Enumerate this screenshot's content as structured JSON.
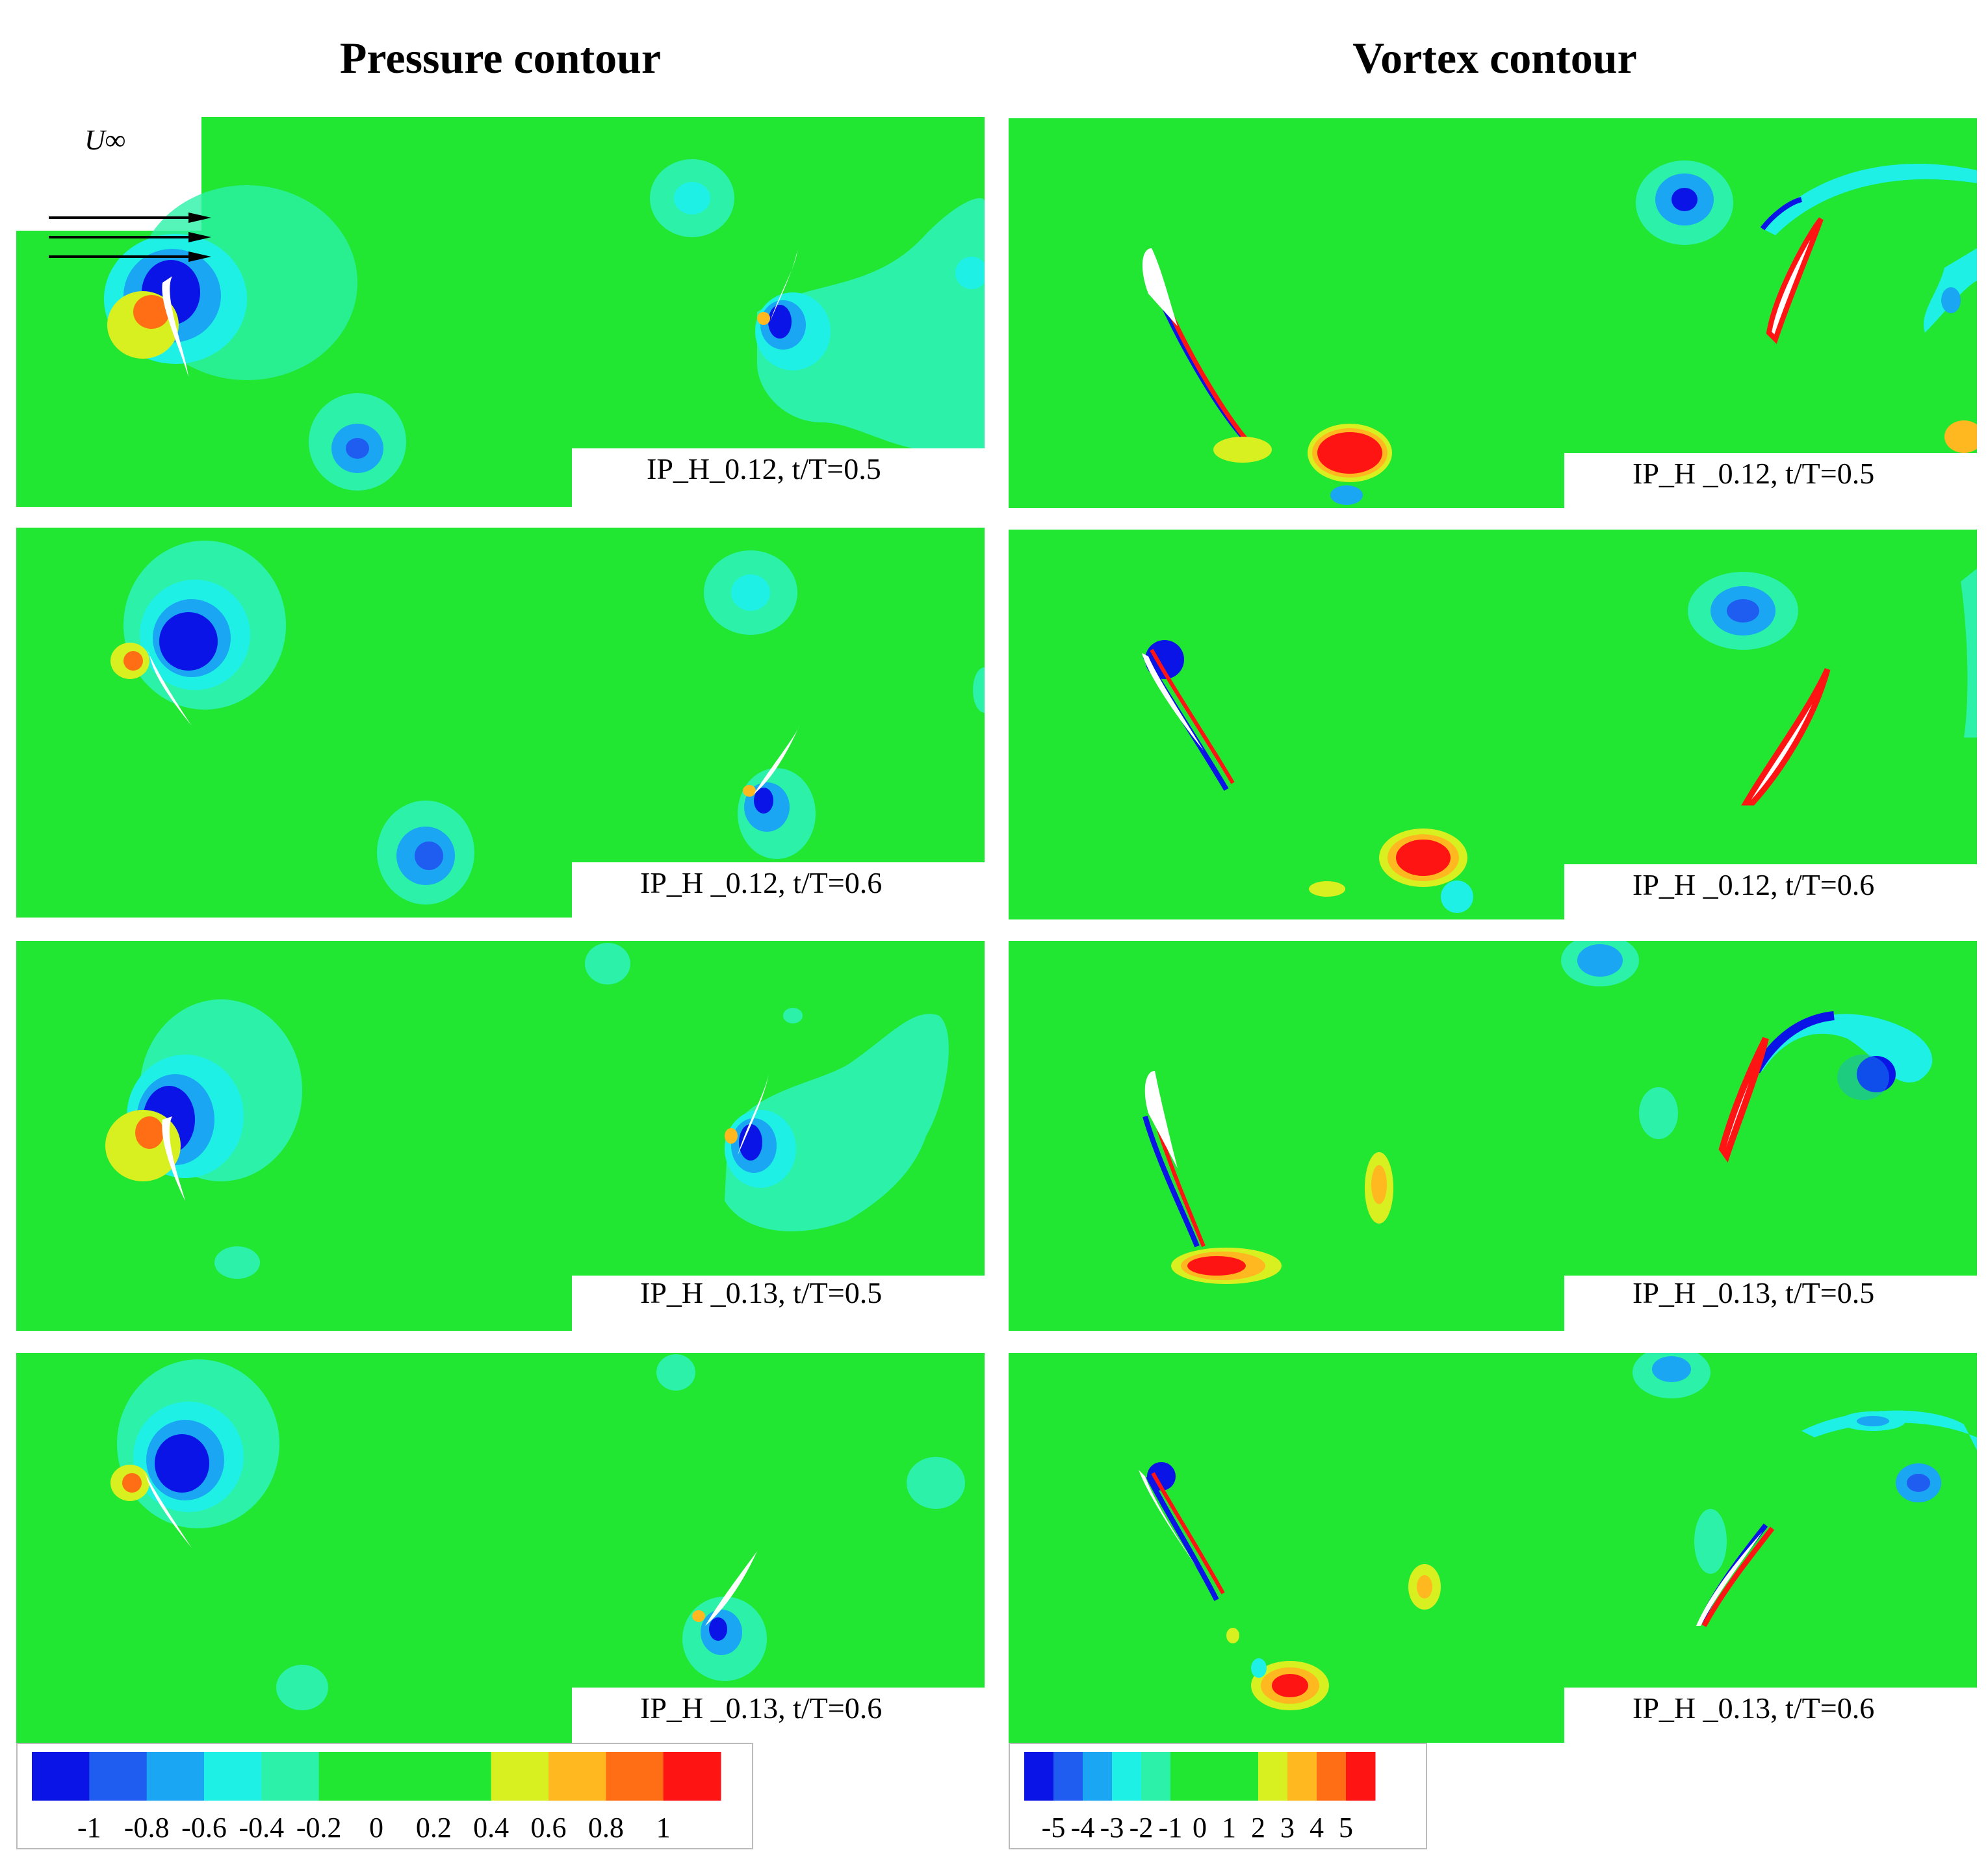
{
  "titles": {
    "pressure": "Pressure contour",
    "vortex": "Vortex contour"
  },
  "freestream_label": "U∞",
  "panels": {
    "pressure": [
      {
        "label": "IP_H_0.12, t/T=0.5"
      },
      {
        "label": "IP_H _0.12, t/T=0.6"
      },
      {
        "label": "IP_H _0.13, t/T=0.5"
      },
      {
        "label": "IP_H _0.13, t/T=0.6"
      }
    ],
    "vortex": [
      {
        "label": "IP_H _0.12, t/T=0.5"
      },
      {
        "label": "IP_H _0.12, t/T=0.6"
      },
      {
        "label": "IP_H _0.13, t/T=0.5"
      },
      {
        "label": "IP_H _0.13, t/T=0.6"
      }
    ]
  },
  "legends": {
    "pressure": {
      "ticks": [
        "-1",
        "-0.8",
        "-0.6",
        "-0.4",
        "-0.2",
        "0",
        "0.2",
        "0.4",
        "0.6",
        "0.8",
        "1"
      ],
      "colors": [
        "#0a14e6",
        "#1f5cf0",
        "#1aa6f2",
        "#1ff0e6",
        "#2bf2a8",
        "#21e632",
        "#21e632",
        "#21e632",
        "#d8f020",
        "#ffb81f",
        "#ff6e14",
        "#ff1414"
      ]
    },
    "vortex": {
      "ticks": [
        "-5",
        "-4",
        "-3",
        "-2",
        "-1",
        "0",
        "1",
        "2",
        "3",
        "4",
        "5"
      ],
      "colors": [
        "#0a14e6",
        "#1f5cf0",
        "#1aa6f2",
        "#1ff0e6",
        "#2bf2a8",
        "#21e632",
        "#21e632",
        "#21e632",
        "#d8f020",
        "#ffb81f",
        "#ff6e14",
        "#ff1414"
      ]
    }
  },
  "colors": {
    "background_field": "#21e632",
    "blue": "#0a14e6",
    "cyan": "#1ff0e6",
    "yellow": "#d8f020",
    "orange": "#ffb81f",
    "red": "#ff1414"
  }
}
